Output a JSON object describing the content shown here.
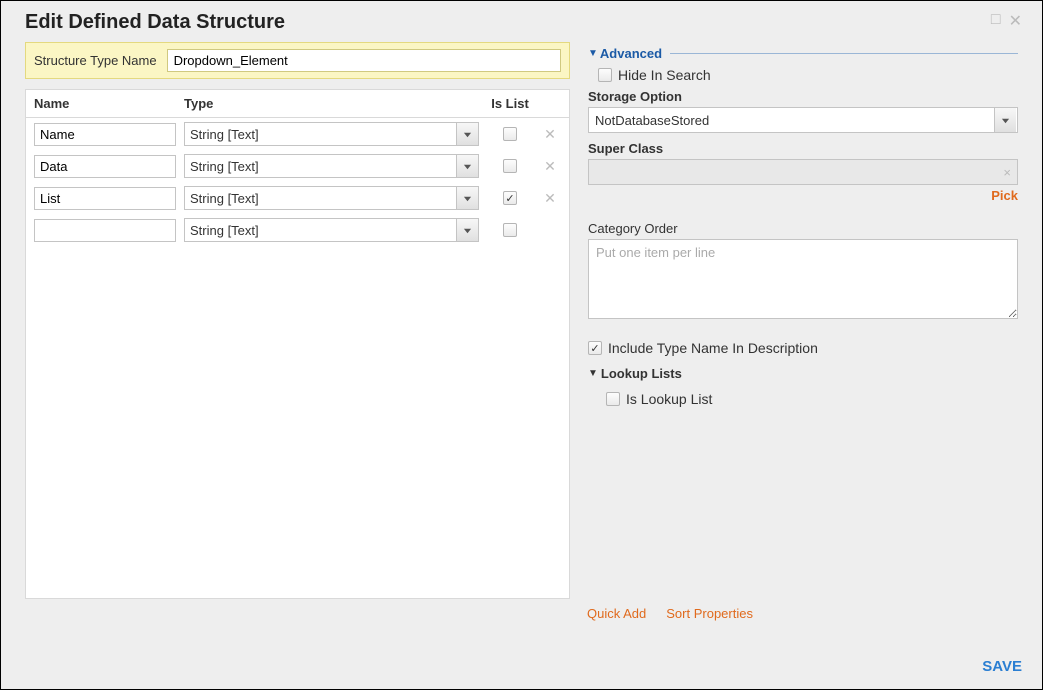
{
  "dialog": {
    "title": "Edit Defined Data Structure"
  },
  "structure_name": {
    "label": "Structure Type Name",
    "value": "Dropdown_Element"
  },
  "columns": {
    "name": "Name",
    "type": "Type",
    "islist": "Is List"
  },
  "rows": [
    {
      "name": "Name",
      "type": "String [Text]",
      "is_list": false,
      "deletable": true
    },
    {
      "name": "Data",
      "type": "String [Text]",
      "is_list": false,
      "deletable": true
    },
    {
      "name": "List",
      "type": "String [Text]",
      "is_list": true,
      "deletable": true
    },
    {
      "name": "",
      "type": "String [Text]",
      "is_list": false,
      "deletable": false
    }
  ],
  "advanced": {
    "header": "Advanced",
    "hide_in_search": {
      "label": "Hide In Search",
      "checked": false
    },
    "storage_option": {
      "label": "Storage Option",
      "value": "NotDatabaseStored"
    },
    "super_class": {
      "label": "Super Class",
      "value": "",
      "pick_label": "Pick"
    },
    "category_order": {
      "label": "Category Order",
      "placeholder": "Put one item per line",
      "value": ""
    },
    "include_name_desc": {
      "label": "Include Type Name In Description",
      "checked": true
    },
    "lookup_section": "Lookup Lists",
    "is_lookup": {
      "label": "Is Lookup List",
      "checked": false
    }
  },
  "links": {
    "quick_add": "Quick Add",
    "sort_props": "Sort Properties"
  },
  "save": "SAVE",
  "colors": {
    "accent": "#e06a1d",
    "primary_text": "#333333",
    "blue": "#1b5aa6",
    "save": "#2a7ed2",
    "yellow_bg": "#fbf6c4"
  }
}
